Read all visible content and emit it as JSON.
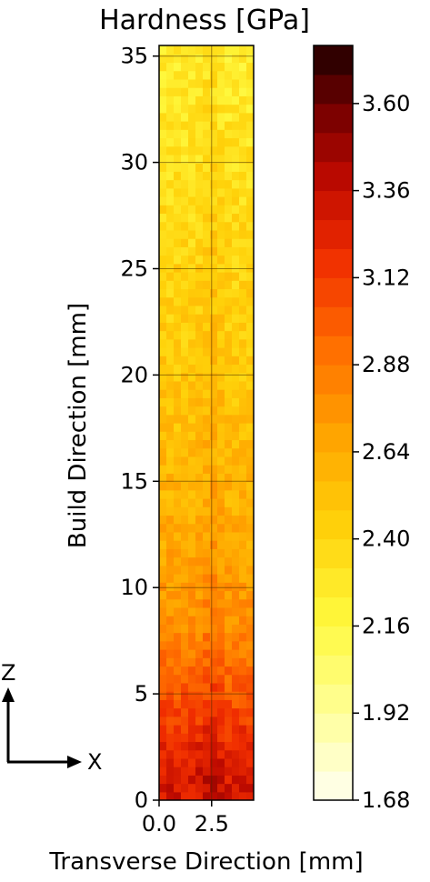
{
  "chart_data": {
    "type": "heatmap",
    "title": "Hardness [GPa]",
    "xlabel": "Transverse Direction [mm]",
    "ylabel": "Build Direction [mm]",
    "xlim": [
      0,
      4.5
    ],
    "ylim": [
      0,
      35.5
    ],
    "x_ticks": [
      "0.0",
      "2.5"
    ],
    "y_ticks": [
      "0",
      "5",
      "10",
      "15",
      "20",
      "25",
      "30",
      "35"
    ],
    "grid": true,
    "colorbar": {
      "label": "Hardness [GPa]",
      "range": [
        1.68,
        3.76
      ],
      "ticks": [
        "1.68",
        "1.92",
        "2.16",
        "2.40",
        "2.64",
        "2.88",
        "3.12",
        "3.36",
        "3.60"
      ],
      "colormap": "hot_r"
    },
    "hardness_profile": [
      {
        "z": 0.5,
        "hardness": 3.3
      },
      {
        "z": 2,
        "hardness": 3.25
      },
      {
        "z": 4,
        "hardness": 3.1
      },
      {
        "z": 6,
        "hardness": 2.95
      },
      {
        "z": 8,
        "hardness": 2.8
      },
      {
        "z": 10,
        "hardness": 2.72
      },
      {
        "z": 12,
        "hardness": 2.65
      },
      {
        "z": 15,
        "hardness": 2.58
      },
      {
        "z": 18,
        "hardness": 2.52
      },
      {
        "z": 21,
        "hardness": 2.47
      },
      {
        "z": 24,
        "hardness": 2.43
      },
      {
        "z": 27,
        "hardness": 2.38
      },
      {
        "z": 30,
        "hardness": 2.32
      },
      {
        "z": 33,
        "hardness": 2.28
      },
      {
        "z": 35.5,
        "hardness": 2.25
      }
    ]
  },
  "axis_indicator": {
    "z_label": "Z",
    "x_label": "X"
  }
}
